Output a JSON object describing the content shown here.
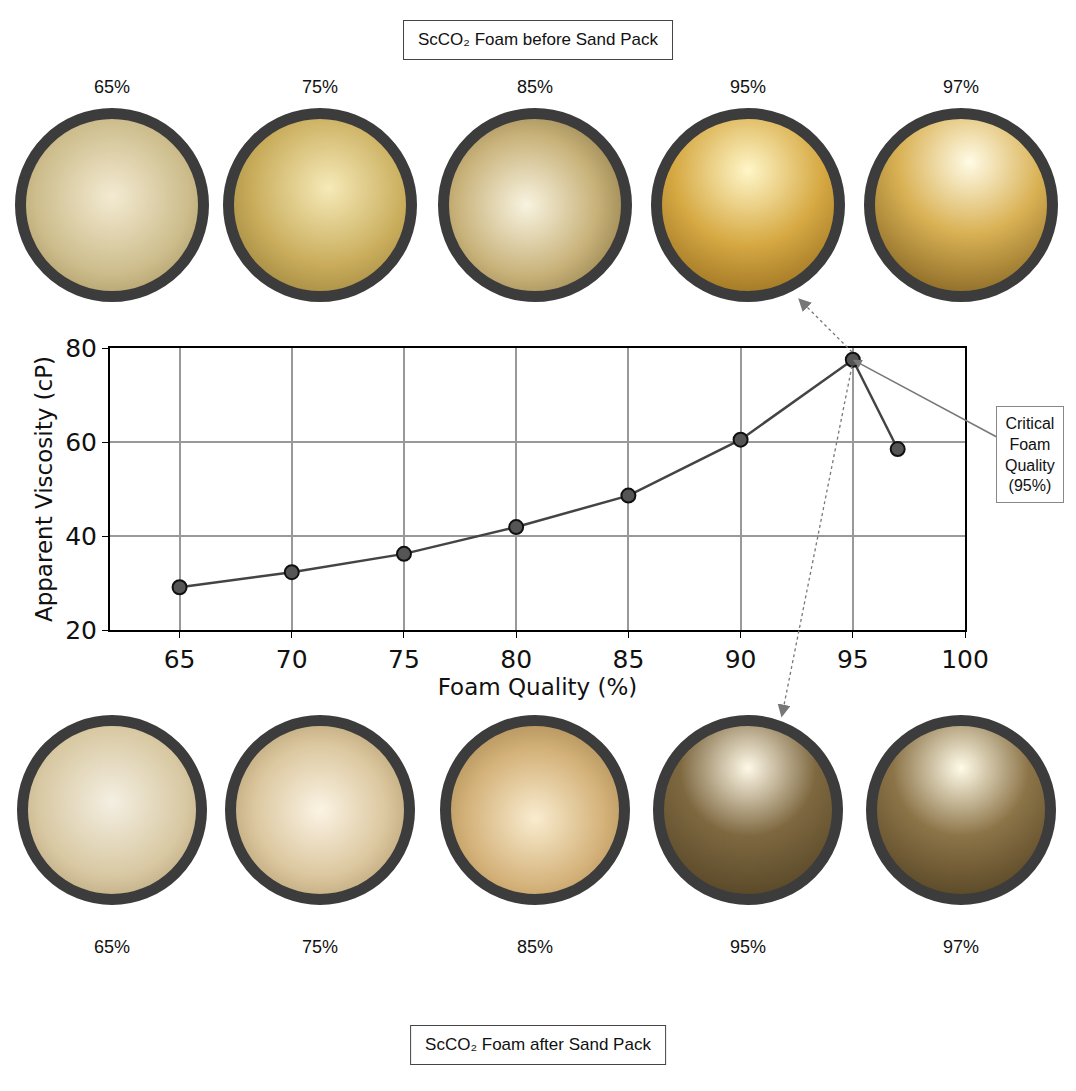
{
  "chart_data": {
    "type": "line",
    "x": [
      65,
      70,
      75,
      80,
      85,
      90,
      95,
      97
    ],
    "values": [
      29.1,
      32.3,
      36.2,
      41.9,
      48.6,
      60.5,
      77.5,
      58.5
    ],
    "x_label": "Foam Quality (%)",
    "y_label": "Apparent Viscosity (cP)",
    "xlim": [
      61.9,
      100
    ],
    "xticks": [
      65,
      70,
      75,
      80,
      85,
      90,
      95,
      100
    ],
    "ylim": [
      20,
      80
    ],
    "yticks": [
      20,
      40,
      60,
      80
    ],
    "grid": true,
    "color": "#444444",
    "marker": "circle",
    "annotations": [
      {
        "text": "Critical Foam Quality (95%)",
        "x": 95,
        "y": 77.5
      }
    ]
  },
  "panels": [
    {
      "title": "ScCO₂ Foam before Sand Pack",
      "labels": [
        "65%",
        "75%",
        "85%",
        "95%",
        "97%"
      ]
    },
    {
      "title": "ScCO₂ Foam after Sand Pack",
      "labels": [
        "65%",
        "75%",
        "85%",
        "95%",
        "97%"
      ]
    }
  ]
}
